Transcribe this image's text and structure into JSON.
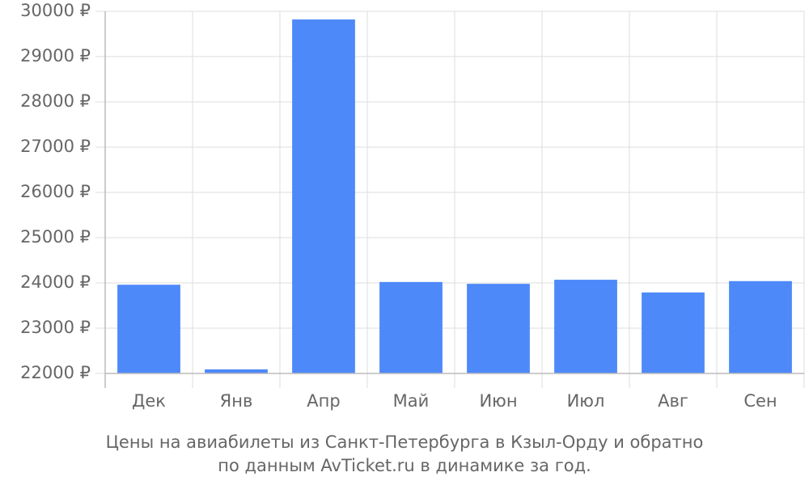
{
  "chart_data": {
    "type": "bar",
    "title": "Цены на авиабилеты из Санкт-Петербурга в Кзыл-Орду и обратно",
    "subtitle": "по данным AvTicket.ru в динамике за год.",
    "categories": [
      "Дек",
      "Янв",
      "Апр",
      "Май",
      "Июн",
      "Июл",
      "Авг",
      "Сен"
    ],
    "values": [
      23960,
      22090,
      29820,
      24020,
      23980,
      24070,
      23790,
      24040
    ],
    "color": "#4e89f9",
    "ylim": [
      22000,
      30000
    ],
    "yticks": [
      {
        "value": 22000,
        "label": "22000 ₽"
      },
      {
        "value": 23000,
        "label": "23000 ₽"
      },
      {
        "value": 24000,
        "label": "24000 ₽"
      },
      {
        "value": 25000,
        "label": "25000 ₽"
      },
      {
        "value": 26000,
        "label": "26000 ₽"
      },
      {
        "value": 27000,
        "label": "27000 ₽"
      },
      {
        "value": 28000,
        "label": "28000 ₽"
      },
      {
        "value": 29000,
        "label": "29000 ₽"
      },
      {
        "value": 30000,
        "label": "30000 ₽"
      }
    ],
    "grid": true
  }
}
